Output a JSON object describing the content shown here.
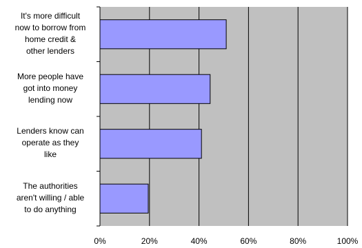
{
  "chart_data": {
    "type": "bar",
    "orientation": "horizontal",
    "categories": [
      "It's more difficult now to borrow from home credit & other lenders",
      "More people have got into money lending now",
      "Lenders know can operate as they like",
      "The authorities aren't willing / able to do anything"
    ],
    "category_lines": [
      [
        "It's more difficult",
        "now to borrow from",
        "home credit &",
        "other lenders"
      ],
      [
        "More people have",
        "got into money",
        "lending now"
      ],
      [
        "Lenders know can",
        "operate as they",
        "like"
      ],
      [
        "The authorities",
        "aren't willing / able",
        "to do anything"
      ]
    ],
    "values": [
      51,
      44.5,
      41,
      19.5
    ],
    "xlim": [
      0,
      100
    ],
    "xticks": [
      0,
      20,
      40,
      60,
      80,
      100
    ],
    "xtick_labels": [
      "0%",
      "20%",
      "40%",
      "60%",
      "80%",
      "100%"
    ],
    "grid": true,
    "title": "",
    "xlabel": "",
    "ylabel": "",
    "colors": {
      "plot_area": "#c0c0c0",
      "bar_fill": "#9999ff",
      "bar_border": "#000000",
      "gridline": "#000000"
    }
  }
}
